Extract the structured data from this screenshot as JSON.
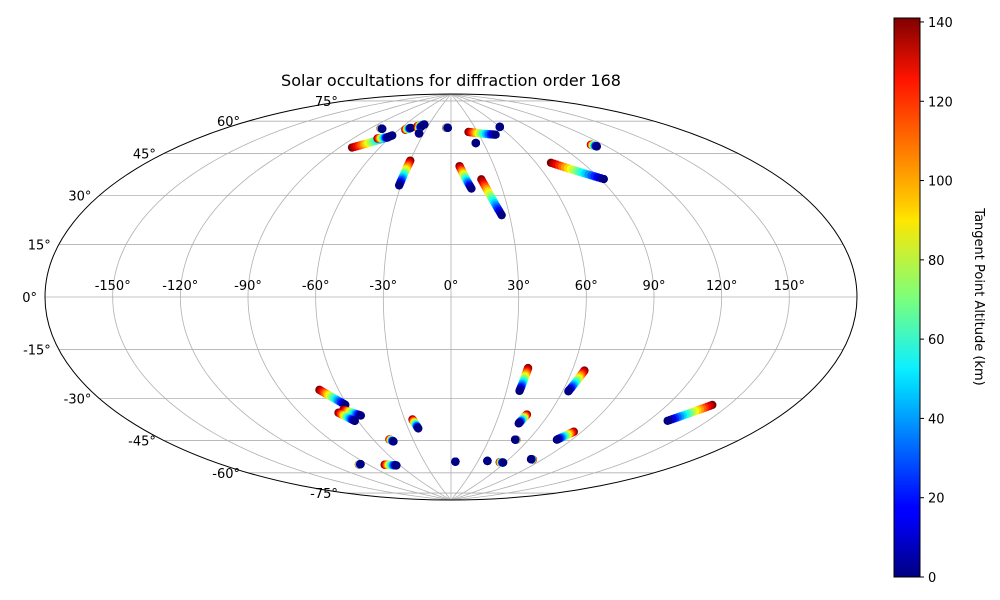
{
  "chart_data": {
    "type": "scatter",
    "projection": "aitoff",
    "title": "Solar occultations for diffraction order 168",
    "xlabel": "",
    "ylabel": "",
    "grid": true,
    "x_tick_labels": [
      "-150°",
      "-120°",
      "-90°",
      "-60°",
      "-30°",
      "0°",
      "30°",
      "60°",
      "90°",
      "120°",
      "150°"
    ],
    "x_tick_values": [
      -150,
      -120,
      -90,
      -60,
      -30,
      0,
      30,
      60,
      90,
      120,
      150
    ],
    "y_tick_labels": [
      "-75°",
      "-60°",
      "-45°",
      "-30°",
      "-15°",
      "0°",
      "15°",
      "30°",
      "45°",
      "60°",
      "75°"
    ],
    "y_tick_values": [
      -75,
      -60,
      -45,
      -30,
      -15,
      0,
      15,
      30,
      45,
      60,
      75
    ],
    "xlim": [
      -180,
      180
    ],
    "ylim": [
      -90,
      90
    ],
    "colorbar": {
      "label": "Tangent Point Altitude (km)",
      "colormap": "jet",
      "range": [
        0,
        141
      ],
      "ticks": [
        0,
        20,
        40,
        60,
        80,
        100,
        120,
        140
      ],
      "tick_labels": [
        "0",
        "20",
        "40",
        "60",
        "80",
        "100",
        "120",
        "140"
      ]
    },
    "tracks": [
      {
        "lon0": -81,
        "lat0": 63,
        "lon1": -60,
        "lat1": 70
      },
      {
        "lon0": -70,
        "lat0": 68,
        "lon1": -62,
        "lat1": 69
      },
      {
        "lon0": -53,
        "lat0": 73,
        "lon1": -49,
        "lat1": 74
      },
      {
        "lon0": -43,
        "lat0": 75,
        "lon1": -36,
        "lat1": 76
      },
      {
        "lon0": -80,
        "lat0": 72,
        "lon1": -78,
        "lat1": 72
      },
      {
        "lon0": -40,
        "lat0": 74,
        "lon1": -38,
        "lat1": 75
      },
      {
        "lon0": -35,
        "lat0": 72,
        "lon1": -35,
        "lat1": 72
      },
      {
        "lon0": -6,
        "lat0": 75,
        "lon1": -4,
        "lat1": 75
      },
      {
        "lon0": 20,
        "lat0": 73,
        "lon1": 47,
        "lat1": 71
      },
      {
        "lon0": 60,
        "lat0": 74,
        "lon1": 60,
        "lat1": 74
      },
      {
        "lon0": 23,
        "lat0": 68,
        "lon1": 23,
        "lat1": 68
      },
      {
        "lon0": -30,
        "lat0": 60,
        "lon1": -31,
        "lat1": 49
      },
      {
        "lon0": 6,
        "lat0": 58,
        "lon1": 12,
        "lat1": 48
      },
      {
        "lon0": 19,
        "lat0": 52,
        "lon1": 26,
        "lat1": 36
      },
      {
        "lon0": 70,
        "lat0": 57,
        "lon1": 92,
        "lat1": 48
      },
      {
        "lon0": 112,
        "lat0": 61,
        "lon1": 114,
        "lat1": 60
      },
      {
        "lon0": -70,
        "lat0": -39,
        "lon1": -61,
        "lat1": -46
      },
      {
        "lon0": -64,
        "lat0": -48,
        "lon1": -56,
        "lat1": -51
      },
      {
        "lon0": -68,
        "lat0": -49,
        "lon1": -62,
        "lat1": -53
      },
      {
        "lon0": -25,
        "lat0": -54,
        "lon1": -23,
        "lat1": -58
      },
      {
        "lon0": 38,
        "lat0": -31,
        "lon1": 37,
        "lat1": -41
      },
      {
        "lon0": 66,
        "lat0": -31,
        "lon1": 63,
        "lat1": -40
      },
      {
        "lon0": 47,
        "lat0": -51,
        "lon1": 45,
        "lat1": -55
      },
      {
        "lon0": 142,
        "lat0": -38,
        "lon1": 130,
        "lat1": -46
      },
      {
        "lon0": 85,
        "lat0": -56,
        "lon1": 80,
        "lat1": -60
      },
      {
        "lon0": 51,
        "lat0": -62,
        "lon1": 50,
        "lat1": -62
      },
      {
        "lon0": -48,
        "lat0": -62,
        "lon1": -46,
        "lat1": -63
      },
      {
        "lon0": -98,
        "lat0": -70,
        "lon1": -96,
        "lat1": -70
      },
      {
        "lon0": -75,
        "lat0": -72,
        "lon1": -64,
        "lat1": -73
      },
      {
        "lon0": 5,
        "lat0": -73,
        "lon1": 5,
        "lat1": -73
      },
      {
        "lon0": 40,
        "lat0": -72,
        "lon1": 40,
        "lat1": -72
      },
      {
        "lon0": 54,
        "lat0": -72,
        "lon1": 58,
        "lat1": -72
      },
      {
        "lon0": 82,
        "lat0": -69,
        "lon1": 80,
        "lat1": -69
      }
    ]
  }
}
